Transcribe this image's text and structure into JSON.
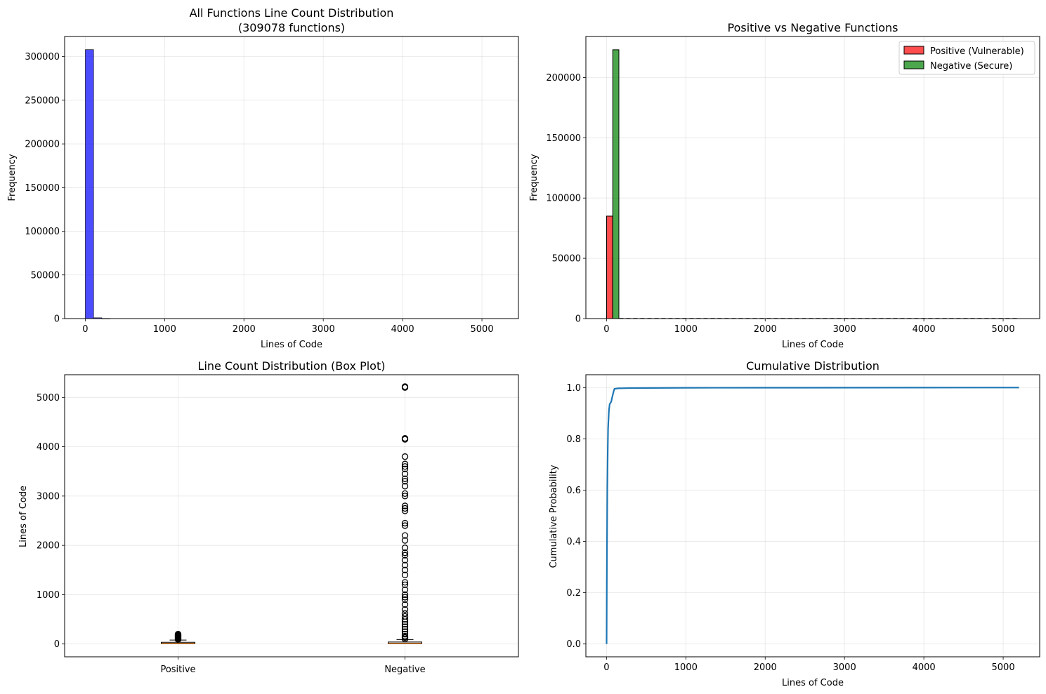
{
  "chart_data": [
    {
      "type": "bar",
      "title": "All Functions Line Count Distribution",
      "subtitle": "(309078 functions)",
      "xlabel": "Lines of Code",
      "ylabel": "Frequency",
      "xlim": [
        -260,
        5460
      ],
      "ylim": [
        0,
        323000
      ],
      "xticks": [
        0,
        1000,
        2000,
        3000,
        4000,
        5000
      ],
      "yticks": [
        0,
        50000,
        100000,
        150000,
        200000,
        250000,
        300000
      ],
      "grid": true,
      "color": "#0000ff",
      "bins": [
        {
          "x0": 1,
          "x1": 105,
          "value": 308000
        },
        {
          "x0": 105,
          "x1": 209,
          "value": 900
        },
        {
          "x0": 209,
          "x1": 313,
          "value": 120
        }
      ]
    },
    {
      "type": "bar",
      "title": "Positive vs Negative Functions",
      "xlabel": "Lines of Code",
      "ylabel": "Frequency",
      "xlim": [
        -260,
        5460
      ],
      "ylim": [
        0,
        234000
      ],
      "xticks": [
        0,
        1000,
        2000,
        3000,
        4000,
        5000
      ],
      "yticks": [
        0,
        50000,
        100000,
        150000,
        200000
      ],
      "grid": true,
      "legend_position": "top-right",
      "series": [
        {
          "name": "Positive (Vulnerable)",
          "color": "#ff0000",
          "bins": [
            {
              "x0": 1,
              "x1": 78,
              "value": 85000
            }
          ]
        },
        {
          "name": "Negative (Secure)",
          "color": "#008000",
          "bins": [
            {
              "x0": 79,
              "x1": 156,
              "value": 223000
            }
          ]
        }
      ]
    },
    {
      "type": "box",
      "title": "Line Count Distribution (Box Plot)",
      "ylabel": "Lines of Code",
      "ylim": [
        -260,
        5460
      ],
      "yticks": [
        0,
        1000,
        2000,
        3000,
        4000,
        5000
      ],
      "grid": true,
      "categories": [
        "Positive",
        "Negative"
      ],
      "boxes": [
        {
          "name": "Positive",
          "q1": 5,
          "median": 15,
          "q3": 35,
          "whisker_low": 1,
          "whisker_high": 80,
          "outliers": [
            90,
            100,
            110,
            120,
            130,
            140,
            150,
            160,
            170,
            180,
            190,
            200
          ]
        },
        {
          "name": "Negative",
          "q1": 5,
          "median": 15,
          "q3": 40,
          "whisker_low": 1,
          "whisker_high": 90,
          "outliers": [
            100,
            130,
            160,
            200,
            250,
            300,
            350,
            400,
            450,
            500,
            560,
            620,
            700,
            800,
            900,
            950,
            1000,
            1100,
            1200,
            1250,
            1400,
            1500,
            1600,
            1700,
            1800,
            1850,
            1950,
            2100,
            2200,
            2400,
            2450,
            2700,
            2750,
            2800,
            3000,
            3050,
            3200,
            3300,
            3350,
            3450,
            3550,
            3600,
            3650,
            3800,
            4150,
            4170,
            5200,
            5220
          ]
        }
      ]
    },
    {
      "type": "line",
      "title": "Cumulative Distribution",
      "xlabel": "Lines of Code",
      "ylabel": "Cumulative Probability",
      "xlim": [
        -260,
        5460
      ],
      "ylim": [
        -0.05,
        1.05
      ],
      "xticks": [
        0,
        1000,
        2000,
        3000,
        4000,
        5000
      ],
      "yticks": [
        0.0,
        0.2,
        0.4,
        0.6,
        0.8,
        1.0
      ],
      "grid": true,
      "color": "#1f77b4",
      "x": [
        1,
        5,
        10,
        15,
        20,
        30,
        40,
        60,
        70,
        90,
        100,
        150,
        300,
        1000,
        2000,
        5200
      ],
      "y": [
        0.0,
        0.3,
        0.6,
        0.75,
        0.84,
        0.91,
        0.935,
        0.945,
        0.96,
        0.985,
        0.995,
        0.997,
        0.998,
        0.999,
        0.9995,
        1.0
      ]
    }
  ]
}
